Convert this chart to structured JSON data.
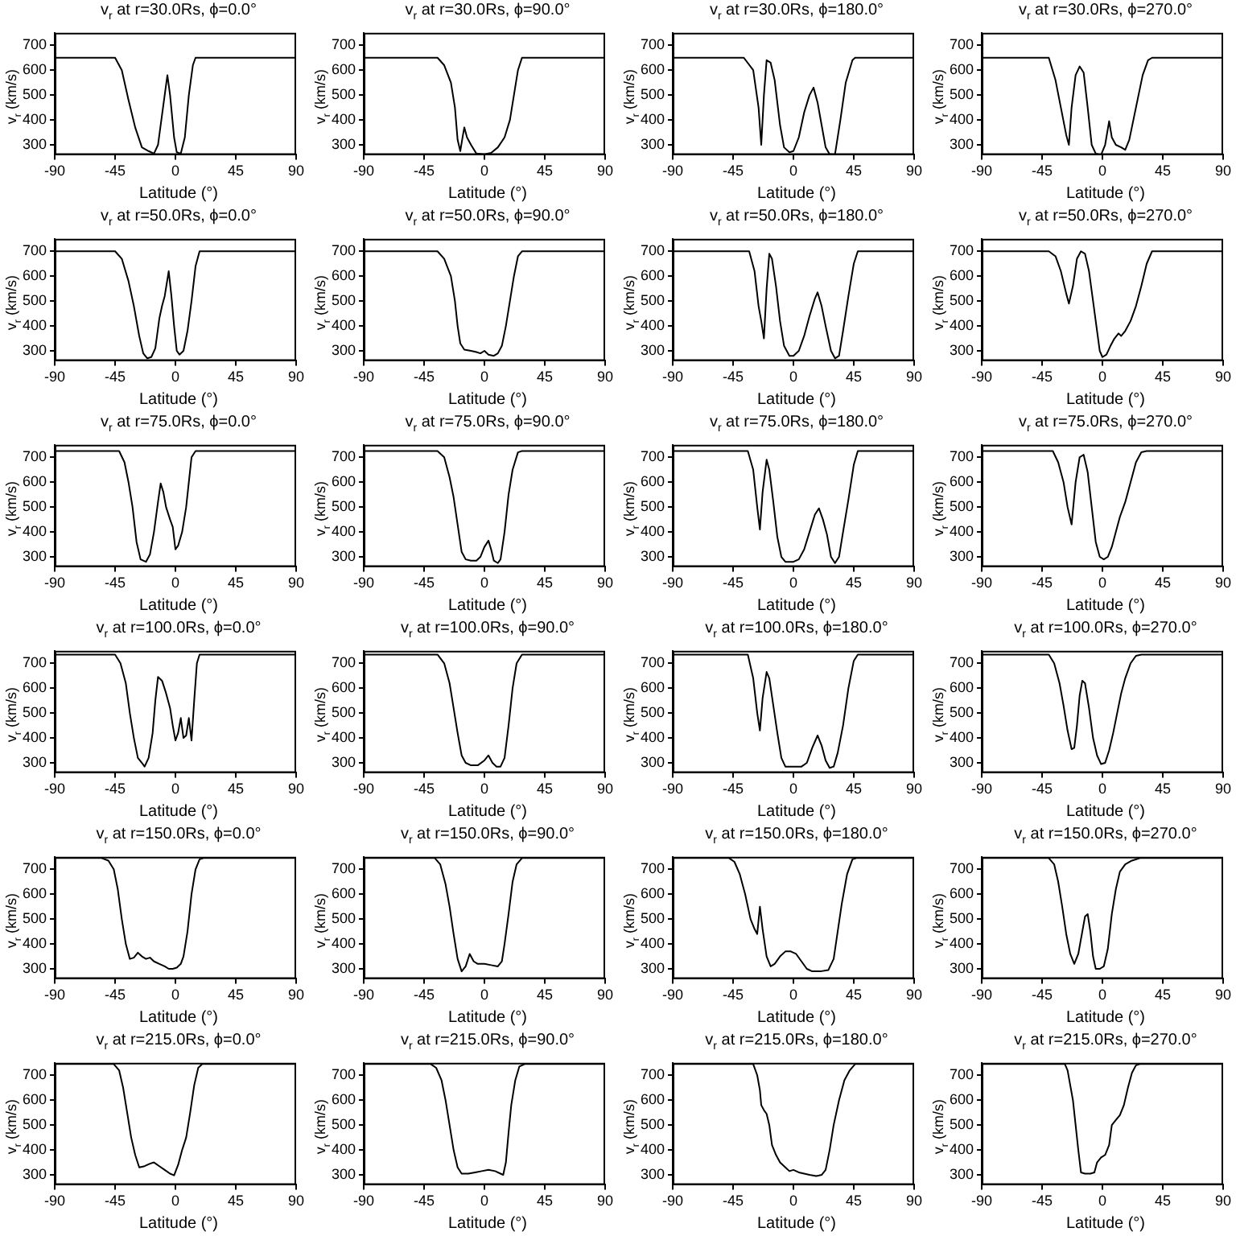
{
  "chart_data": [
    {
      "type": "line",
      "title": "v$_{r}$ at r=30.0Rs, ϕ=0.0°",
      "xlabel": "Latitude (°)",
      "ylabel": "v$_{r}$ (km/s)",
      "color": "#000000",
      "xlim": [
        -90,
        90
      ],
      "xticks": [
        -90,
        -45,
        0,
        45,
        90
      ],
      "ylim": [
        260,
        750
      ],
      "yticks": [
        300,
        400,
        500,
        600,
        700
      ],
      "x": [
        -90,
        -45,
        -40,
        -35,
        -30,
        -25,
        -20,
        -16,
        -13,
        -10,
        -6,
        -4,
        -1,
        1,
        4,
        7,
        10,
        13,
        15,
        90
      ],
      "values": [
        650,
        650,
        600,
        480,
        370,
        290,
        275,
        265,
        300,
        420,
        580,
        500,
        330,
        270,
        265,
        330,
        500,
        620,
        650,
        650
      ]
    },
    {
      "type": "line",
      "title": "v$_{r}$ at r=30.0Rs, ϕ=90.0°",
      "xlabel": "Latitude (°)",
      "ylabel": "v$_{r}$ (km/s)",
      "color": "#000000",
      "xlim": [
        -90,
        90
      ],
      "xticks": [
        -90,
        -45,
        0,
        45,
        90
      ],
      "ylim": [
        260,
        750
      ],
      "yticks": [
        300,
        400,
        500,
        600,
        700
      ],
      "x": [
        -90,
        -35,
        -30,
        -25,
        -22,
        -20,
        -18,
        -16,
        -15,
        -13,
        -10,
        -6,
        0,
        5,
        10,
        15,
        19,
        22,
        25,
        28,
        90
      ],
      "values": [
        650,
        650,
        620,
        550,
        450,
        320,
        275,
        340,
        370,
        330,
        300,
        265,
        262,
        268,
        290,
        330,
        400,
        500,
        600,
        650,
        650
      ]
    },
    {
      "type": "line",
      "title": "v$_{r}$ at r=30.0Rs, ϕ=180.0°",
      "xlabel": "Latitude (°)",
      "ylabel": "v$_{r}$ (km/s)",
      "color": "#000000",
      "xlim": [
        -90,
        90
      ],
      "xticks": [
        -90,
        -45,
        0,
        45,
        90
      ],
      "ylim": [
        260,
        750
      ],
      "yticks": [
        300,
        400,
        500,
        600,
        700
      ],
      "x": [
        -90,
        -37,
        -30,
        -26,
        -24,
        -22,
        -20,
        -17,
        -14,
        -10,
        -7,
        -3,
        0,
        4,
        8,
        12,
        15,
        18,
        21,
        24,
        27,
        31,
        35,
        39,
        44,
        46,
        90
      ],
      "values": [
        650,
        650,
        600,
        450,
        300,
        500,
        640,
        630,
        560,
        380,
        290,
        270,
        275,
        330,
        430,
        500,
        530,
        470,
        380,
        290,
        262,
        262,
        400,
        550,
        640,
        650,
        650
      ]
    },
    {
      "type": "line",
      "title": "v$_{r}$ at r=30.0Rs, ϕ=270.0°",
      "xlabel": "Latitude (°)",
      "ylabel": "v$_{r}$ (km/s)",
      "color": "#000000",
      "xlim": [
        -90,
        90
      ],
      "xticks": [
        -90,
        -45,
        0,
        45,
        90
      ],
      "ylim": [
        260,
        750
      ],
      "yticks": [
        300,
        400,
        500,
        600,
        700
      ],
      "x": [
        -90,
        -40,
        -35,
        -31,
        -27,
        -25,
        -23,
        -20,
        -17,
        -14,
        -11,
        -8,
        -5,
        -1,
        2,
        5,
        7,
        10,
        14,
        17,
        20,
        25,
        30,
        34,
        37,
        90
      ],
      "values": [
        650,
        650,
        560,
        450,
        340,
        300,
        450,
        580,
        615,
        590,
        450,
        300,
        265,
        260,
        300,
        395,
        330,
        300,
        290,
        280,
        320,
        450,
        580,
        640,
        650,
        650
      ]
    },
    {
      "type": "line",
      "title": "v$_{r}$ at r=50.0Rs, ϕ=0.0°",
      "xlabel": "Latitude (°)",
      "ylabel": "v$_{r}$ (km/s)",
      "color": "#000000",
      "xlim": [
        -90,
        90
      ],
      "xticks": [
        -90,
        -45,
        0,
        45,
        90
      ],
      "ylim": [
        260,
        750
      ],
      "yticks": [
        300,
        400,
        500,
        600,
        700
      ],
      "x": [
        -90,
        -45,
        -40,
        -35,
        -31,
        -27,
        -24,
        -21,
        -18,
        -15,
        -12,
        -10,
        -8,
        -5,
        -3,
        -1,
        1,
        3,
        6,
        9,
        12,
        15,
        18,
        90
      ],
      "values": [
        700,
        700,
        670,
        580,
        480,
        360,
        290,
        270,
        275,
        310,
        430,
        480,
        520,
        620,
        520,
        400,
        300,
        285,
        300,
        380,
        500,
        640,
        700,
        700
      ]
    },
    {
      "type": "line",
      "title": "v$_{r}$ at r=50.0Rs, ϕ=90.0°",
      "xlabel": "Latitude (°)",
      "ylabel": "v$_{r}$ (km/s)",
      "color": "#000000",
      "xlim": [
        -90,
        90
      ],
      "xticks": [
        -90,
        -45,
        0,
        45,
        90
      ],
      "ylim": [
        260,
        750
      ],
      "yticks": [
        300,
        400,
        500,
        600,
        700
      ],
      "x": [
        -90,
        -35,
        -30,
        -25,
        -22,
        -20,
        -18,
        -15,
        -10,
        -6,
        -3,
        0,
        3,
        7,
        10,
        13,
        16,
        19,
        22,
        25,
        28,
        90
      ],
      "values": [
        700,
        700,
        670,
        600,
        500,
        400,
        330,
        305,
        300,
        295,
        290,
        300,
        285,
        280,
        290,
        320,
        400,
        500,
        600,
        680,
        700,
        700
      ]
    },
    {
      "type": "line",
      "title": "v$_{r}$ at r=50.0Rs, ϕ=180.0°",
      "xlabel": "Latitude (°)",
      "ylabel": "v$_{r}$ (km/s)",
      "color": "#000000",
      "xlim": [
        -90,
        90
      ],
      "xticks": [
        -90,
        -45,
        0,
        45,
        90
      ],
      "ylim": [
        260,
        750
      ],
      "yticks": [
        300,
        400,
        500,
        600,
        700
      ],
      "x": [
        -90,
        -33,
        -29,
        -26,
        -24,
        -22,
        -20,
        -18,
        -16,
        -13,
        -10,
        -7,
        -3,
        0,
        4,
        8,
        12,
        16,
        18,
        21,
        24,
        28,
        31,
        34,
        37,
        41,
        45,
        48,
        90
      ],
      "values": [
        700,
        700,
        620,
        480,
        420,
        350,
        550,
        690,
        670,
        560,
        420,
        320,
        280,
        280,
        300,
        360,
        440,
        510,
        535,
        480,
        400,
        300,
        270,
        280,
        380,
        520,
        650,
        700,
        700
      ]
    },
    {
      "type": "line",
      "title": "v$_{r}$ at r=50.0Rs, ϕ=270.0°",
      "xlabel": "Latitude (°)",
      "ylabel": "v$_{r}$ (km/s)",
      "color": "#000000",
      "xlim": [
        -90,
        90
      ],
      "xticks": [
        -90,
        -45,
        0,
        45,
        90
      ],
      "ylim": [
        260,
        750
      ],
      "yticks": [
        300,
        400,
        500,
        600,
        700
      ],
      "x": [
        -90,
        -40,
        -35,
        -31,
        -27,
        -25,
        -22,
        -19,
        -16,
        -13,
        -10,
        -7,
        -4,
        -2,
        0,
        3,
        6,
        9,
        12,
        14,
        17,
        21,
        25,
        29,
        33,
        37,
        90
      ],
      "values": [
        700,
        700,
        680,
        620,
        530,
        490,
        560,
        670,
        700,
        690,
        620,
        500,
        380,
        300,
        275,
        285,
        320,
        350,
        370,
        360,
        380,
        420,
        480,
        560,
        650,
        700,
        700
      ]
    },
    {
      "type": "line",
      "title": "v$_{r}$ at r=75.0Rs, ϕ=0.0°",
      "xlabel": "Latitude (°)",
      "ylabel": "v$_{r}$ (km/s)",
      "color": "#000000",
      "xlim": [
        -90,
        90
      ],
      "xticks": [
        -90,
        -45,
        0,
        45,
        90
      ],
      "ylim": [
        260,
        750
      ],
      "yticks": [
        300,
        400,
        500,
        600,
        700
      ],
      "x": [
        -90,
        -42,
        -38,
        -35,
        -32,
        -29,
        -26,
        -22,
        -19,
        -16,
        -13,
        -11,
        -9,
        -7,
        -4,
        -2,
        0,
        2,
        5,
        8,
        10,
        12,
        15,
        90
      ],
      "values": [
        725,
        725,
        680,
        600,
        500,
        360,
        290,
        280,
        310,
        400,
        520,
        595,
        560,
        500,
        450,
        420,
        330,
        345,
        400,
        500,
        600,
        700,
        725,
        725
      ]
    },
    {
      "type": "line",
      "title": "v$_{r}$ at r=75.0Rs, ϕ=90.0°",
      "xlabel": "Latitude (°)",
      "ylabel": "v$_{r}$ (km/s)",
      "color": "#000000",
      "xlim": [
        -90,
        90
      ],
      "xticks": [
        -90,
        -45,
        0,
        45,
        90
      ],
      "ylim": [
        260,
        750
      ],
      "yticks": [
        300,
        400,
        500,
        600,
        700
      ],
      "x": [
        -90,
        -35,
        -30,
        -26,
        -23,
        -20,
        -17,
        -14,
        -10,
        -6,
        -3,
        0,
        3,
        5,
        7,
        10,
        12,
        15,
        18,
        21,
        25,
        28,
        90
      ],
      "values": [
        725,
        725,
        700,
        620,
        540,
        430,
        320,
        290,
        285,
        285,
        300,
        340,
        365,
        330,
        285,
        275,
        290,
        400,
        550,
        650,
        720,
        725,
        725
      ]
    },
    {
      "type": "line",
      "title": "v$_{r}$ at r=75.0Rs, ϕ=180.0°",
      "xlabel": "Latitude (°)",
      "ylabel": "v$_{r}$ (km/s)",
      "color": "#000000",
      "xlim": [
        -90,
        90
      ],
      "xticks": [
        -90,
        -45,
        0,
        45,
        90
      ],
      "ylim": [
        260,
        750
      ],
      "yticks": [
        300,
        400,
        500,
        600,
        700
      ],
      "x": [
        -90,
        -34,
        -30,
        -27,
        -25,
        -23,
        -20,
        -18,
        -15,
        -12,
        -9,
        -6,
        0,
        4,
        8,
        12,
        16,
        19,
        22,
        25,
        28,
        31,
        34,
        37,
        41,
        45,
        48,
        90
      ],
      "values": [
        725,
        725,
        650,
        500,
        410,
        560,
        690,
        650,
        520,
        380,
        300,
        280,
        280,
        290,
        330,
        400,
        470,
        495,
        450,
        390,
        300,
        275,
        300,
        400,
        530,
        670,
        725,
        725
      ]
    },
    {
      "type": "line",
      "title": "v$_{r}$ at r=75.0Rs, ϕ=270.0°",
      "xlabel": "Latitude (°)",
      "ylabel": "v$_{r}$ (km/s)",
      "color": "#000000",
      "xlim": [
        -90,
        90
      ],
      "xticks": [
        -90,
        -45,
        0,
        45,
        90
      ],
      "ylim": [
        260,
        750
      ],
      "yticks": [
        300,
        400,
        500,
        600,
        700
      ],
      "x": [
        -90,
        -37,
        -33,
        -29,
        -26,
        -23,
        -20,
        -17,
        -14,
        -11,
        -8,
        -5,
        -2,
        1,
        4,
        7,
        10,
        13,
        17,
        21,
        25,
        29,
        33,
        90
      ],
      "values": [
        725,
        725,
        680,
        600,
        500,
        430,
        600,
        700,
        710,
        640,
        500,
        360,
        300,
        290,
        300,
        340,
        400,
        460,
        520,
        600,
        680,
        720,
        725,
        725
      ]
    },
    {
      "type": "line",
      "title": "v$_{r}$ at r=100.0Rs, ϕ=0.0°",
      "xlabel": "Latitude (°)",
      "ylabel": "v$_{r}$ (km/s)",
      "color": "#000000",
      "xlim": [
        -90,
        90
      ],
      "xticks": [
        -90,
        -45,
        0,
        45,
        90
      ],
      "ylim": [
        260,
        750
      ],
      "yticks": [
        300,
        400,
        500,
        600,
        700
      ],
      "x": [
        -90,
        -45,
        -41,
        -37,
        -34,
        -31,
        -28,
        -25,
        -23,
        -20,
        -17,
        -15,
        -13,
        -10,
        -7,
        -4,
        -2,
        0,
        2,
        4,
        6,
        8,
        10,
        12,
        14,
        16,
        18,
        90
      ],
      "values": [
        735,
        735,
        700,
        620,
        500,
        400,
        320,
        300,
        285,
        320,
        420,
        550,
        645,
        630,
        580,
        520,
        450,
        390,
        420,
        480,
        400,
        410,
        480,
        390,
        550,
        700,
        735,
        735
      ]
    },
    {
      "type": "line",
      "title": "v$_{r}$ at r=100.0Rs, ϕ=90.0°",
      "xlabel": "Latitude (°)",
      "ylabel": "v$_{r}$ (km/s)",
      "color": "#000000",
      "xlim": [
        -90,
        90
      ],
      "xticks": [
        -90,
        -45,
        0,
        45,
        90
      ],
      "ylim": [
        260,
        750
      ],
      "yticks": [
        300,
        400,
        500,
        600,
        700
      ],
      "x": [
        -90,
        -35,
        -30,
        -26,
        -23,
        -20,
        -17,
        -14,
        -10,
        -5,
        0,
        3,
        6,
        9,
        12,
        15,
        18,
        21,
        24,
        28,
        90
      ],
      "values": [
        735,
        735,
        700,
        620,
        520,
        420,
        330,
        300,
        290,
        290,
        310,
        330,
        300,
        285,
        285,
        320,
        450,
        600,
        700,
        735,
        735
      ]
    },
    {
      "type": "line",
      "title": "v$_{r}$ at r=100.0Rs, ϕ=180.0°",
      "xlabel": "Latitude (°)",
      "ylabel": "v$_{r}$ (km/s)",
      "color": "#000000",
      "xlim": [
        -90,
        90
      ],
      "xticks": [
        -90,
        -45,
        0,
        45,
        90
      ],
      "ylim": [
        260,
        750
      ],
      "yticks": [
        300,
        400,
        500,
        600,
        700
      ],
      "x": [
        -90,
        -34,
        -30,
        -27,
        -25,
        -23,
        -20,
        -18,
        -15,
        -12,
        -9,
        -6,
        0,
        6,
        10,
        14,
        18,
        21,
        24,
        27,
        30,
        33,
        37,
        41,
        45,
        48,
        90
      ],
      "values": [
        735,
        735,
        640,
        500,
        430,
        560,
        665,
        640,
        530,
        420,
        320,
        285,
        285,
        285,
        300,
        360,
        410,
        370,
        310,
        280,
        285,
        340,
        450,
        600,
        710,
        735,
        735
      ]
    },
    {
      "type": "line",
      "title": "v$_{r}$ at r=100.0Rs, ϕ=270.0°",
      "xlabel": "Latitude (°)",
      "ylabel": "v$_{r}$ (km/s)",
      "color": "#000000",
      "xlim": [
        -90,
        90
      ],
      "xticks": [
        -90,
        -45,
        0,
        45,
        90
      ],
      "ylim": [
        260,
        750
      ],
      "yticks": [
        300,
        400,
        500,
        600,
        700
      ],
      "x": [
        -90,
        -40,
        -36,
        -32,
        -29,
        -26,
        -23,
        -21,
        -19,
        -17,
        -15,
        -13,
        -10,
        -7,
        -4,
        -1,
        2,
        5,
        8,
        11,
        14,
        17,
        21,
        25,
        29,
        90
      ],
      "values": [
        735,
        735,
        700,
        620,
        530,
        430,
        355,
        360,
        450,
        570,
        630,
        620,
        520,
        400,
        330,
        295,
        300,
        350,
        420,
        500,
        580,
        640,
        700,
        730,
        735,
        735
      ]
    },
    {
      "type": "line",
      "title": "v$_{r}$ at r=150.0Rs, ϕ=0.0°",
      "xlabel": "Latitude (°)",
      "ylabel": "v$_{r}$ (km/s)",
      "color": "#000000",
      "xlim": [
        -90,
        90
      ],
      "xticks": [
        -90,
        -45,
        0,
        45,
        90
      ],
      "ylim": [
        260,
        750
      ],
      "yticks": [
        300,
        400,
        500,
        600,
        700
      ],
      "x": [
        -90,
        -55,
        -50,
        -46,
        -43,
        -40,
        -37,
        -34,
        -31,
        -28,
        -25,
        -22,
        -19,
        -16,
        -12,
        -8,
        -5,
        -2,
        1,
        4,
        6,
        9,
        12,
        15,
        18,
        21,
        90
      ],
      "values": [
        745,
        745,
        735,
        700,
        620,
        500,
        400,
        340,
        345,
        365,
        350,
        340,
        345,
        330,
        320,
        310,
        300,
        300,
        305,
        320,
        350,
        450,
        600,
        700,
        740,
        745,
        745
      ]
    },
    {
      "type": "line",
      "title": "v$_{r}$ at r=150.0Rs, ϕ=90.0°",
      "xlabel": "Latitude (°)",
      "ylabel": "v$_{r}$ (km/s)",
      "color": "#000000",
      "xlim": [
        -90,
        90
      ],
      "xticks": [
        -90,
        -45,
        0,
        45,
        90
      ],
      "ylim": [
        260,
        750
      ],
      "yticks": [
        300,
        400,
        500,
        600,
        700
      ],
      "x": [
        -90,
        -37,
        -33,
        -29,
        -26,
        -23,
        -20,
        -17,
        -14,
        -11,
        -8,
        -5,
        0,
        5,
        10,
        13,
        15,
        18,
        21,
        24,
        28,
        90
      ],
      "values": [
        745,
        745,
        720,
        640,
        550,
        440,
        340,
        290,
        310,
        360,
        330,
        320,
        320,
        315,
        310,
        330,
        400,
        520,
        650,
        720,
        745,
        745
      ]
    },
    {
      "type": "line",
      "title": "v$_{r}$ at r=150.0Rs, ϕ=180.0°",
      "xlabel": "Latitude (°)",
      "ylabel": "v$_{r}$ (km/s)",
      "color": "#000000",
      "xlim": [
        -90,
        90
      ],
      "xticks": [
        -90,
        -45,
        0,
        45,
        90
      ],
      "ylim": [
        260,
        750
      ],
      "yticks": [
        300,
        400,
        500,
        600,
        700
      ],
      "x": [
        -90,
        -48,
        -44,
        -40,
        -36,
        -32,
        -29,
        -27,
        -25,
        -23,
        -20,
        -17,
        -14,
        -10,
        -6,
        -2,
        2,
        6,
        10,
        14,
        20,
        26,
        30,
        33,
        36,
        40,
        44,
        47,
        90
      ],
      "values": [
        745,
        745,
        730,
        680,
        600,
        500,
        460,
        440,
        550,
        460,
        350,
        310,
        320,
        350,
        370,
        370,
        360,
        330,
        300,
        290,
        290,
        295,
        340,
        450,
        560,
        680,
        740,
        745,
        745
      ]
    },
    {
      "type": "line",
      "title": "v$_{r}$ at r=150.0Rs, ϕ=270.0°",
      "xlabel": "Latitude (°)",
      "ylabel": "v$_{r}$ (km/s)",
      "color": "#000000",
      "xlim": [
        -90,
        90
      ],
      "xticks": [
        -90,
        -45,
        0,
        45,
        90
      ],
      "ylim": [
        260,
        750
      ],
      "yticks": [
        300,
        400,
        500,
        600,
        700
      ],
      "x": [
        -90,
        -40,
        -36,
        -33,
        -30,
        -27,
        -24,
        -21,
        -18,
        -15,
        -13,
        -11,
        -9,
        -7,
        -5,
        -2,
        1,
        4,
        7,
        10,
        13,
        17,
        22,
        28,
        90
      ],
      "values": [
        745,
        745,
        720,
        650,
        550,
        440,
        360,
        320,
        360,
        450,
        510,
        520,
        450,
        350,
        300,
        300,
        310,
        380,
        520,
        620,
        690,
        720,
        735,
        745,
        745
      ]
    },
    {
      "type": "line",
      "title": "v$_{r}$ at r=215.0Rs, ϕ=0.0°",
      "xlabel": "Latitude (°)",
      "ylabel": "v$_{r}$ (km/s)",
      "color": "#000000",
      "xlim": [
        -90,
        90
      ],
      "xticks": [
        -90,
        -45,
        0,
        45,
        90
      ],
      "ylim": [
        260,
        750
      ],
      "yticks": [
        300,
        400,
        500,
        600,
        700
      ],
      "x": [
        -90,
        -46,
        -42,
        -39,
        -36,
        -33,
        -30,
        -27,
        -23,
        -19,
        -16,
        -12,
        -8,
        -4,
        -1,
        2,
        5,
        8,
        11,
        14,
        17,
        20,
        90
      ],
      "values": [
        745,
        745,
        720,
        650,
        550,
        450,
        380,
        330,
        335,
        345,
        350,
        335,
        320,
        305,
        298,
        340,
        400,
        450,
        550,
        660,
        730,
        745,
        745
      ]
    },
    {
      "type": "line",
      "title": "v$_{r}$ at r=215.0Rs, ϕ=90.0°",
      "xlabel": "Latitude (°)",
      "ylabel": "v$_{r}$ (km/s)",
      "color": "#000000",
      "xlim": [
        -90,
        90
      ],
      "xticks": [
        -90,
        -45,
        0,
        45,
        90
      ],
      "ylim": [
        260,
        750
      ],
      "yticks": [
        300,
        400,
        500,
        600,
        700
      ],
      "x": [
        -90,
        -40,
        -36,
        -32,
        -29,
        -26,
        -23,
        -20,
        -17,
        -12,
        -7,
        -2,
        3,
        8,
        12,
        14,
        16,
        18,
        20,
        23,
        26,
        30,
        90
      ],
      "values": [
        745,
        745,
        730,
        680,
        600,
        500,
        400,
        330,
        305,
        305,
        310,
        315,
        320,
        315,
        305,
        300,
        350,
        470,
        580,
        680,
        735,
        745,
        745
      ]
    },
    {
      "type": "line",
      "title": "v$_{r}$ at r=215.0Rs, ϕ=180.0°",
      "xlabel": "Latitude (°)",
      "ylabel": "v$_{r}$ (km/s)",
      "color": "#000000",
      "xlim": [
        -90,
        90
      ],
      "xticks": [
        -90,
        -45,
        0,
        45,
        90
      ],
      "ylim": [
        260,
        750
      ],
      "yticks": [
        300,
        400,
        500,
        600,
        700
      ],
      "x": [
        -90,
        -30,
        -27,
        -25,
        -24,
        -22,
        -20,
        -18,
        -16,
        -13,
        -10,
        -6,
        -3,
        0,
        4,
        8,
        12,
        17,
        21,
        24,
        27,
        30,
        34,
        38,
        42,
        46,
        90
      ],
      "values": [
        745,
        745,
        700,
        640,
        580,
        560,
        545,
        500,
        420,
        380,
        350,
        330,
        315,
        320,
        310,
        305,
        300,
        295,
        300,
        320,
        400,
        500,
        600,
        680,
        720,
        745,
        745
      ]
    },
    {
      "type": "line",
      "title": "v$_{r}$ at r=215.0Rs, ϕ=270.0°",
      "xlabel": "Latitude (°)",
      "ylabel": "v$_{r}$ (km/s)",
      "color": "#000000",
      "xlim": [
        -90,
        90
      ],
      "xticks": [
        -90,
        -45,
        0,
        45,
        90
      ],
      "ylim": [
        260,
        750
      ],
      "yticks": [
        300,
        400,
        500,
        600,
        700
      ],
      "x": [
        -90,
        -28,
        -26,
        -24,
        -22,
        -20,
        -18,
        -16,
        -13,
        -9,
        -6,
        -4,
        -1,
        2,
        5,
        7,
        10,
        13,
        16,
        19,
        22,
        25,
        28,
        90
      ],
      "values": [
        745,
        745,
        720,
        660,
        600,
        500,
        400,
        310,
        305,
        305,
        310,
        350,
        370,
        380,
        420,
        500,
        520,
        540,
        580,
        650,
        710,
        740,
        745,
        745
      ]
    }
  ]
}
